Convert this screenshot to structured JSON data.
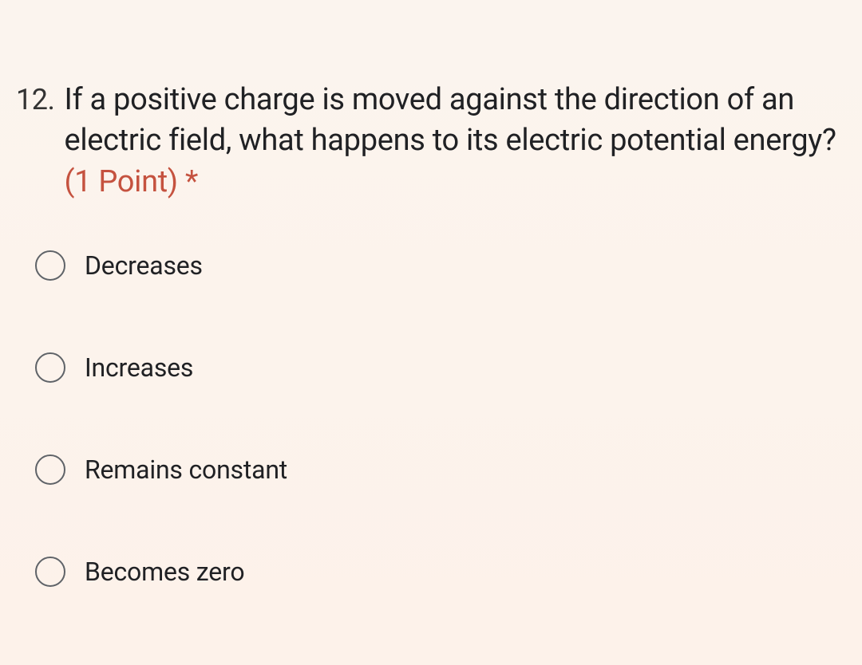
{
  "question": {
    "number": "12.",
    "text": "If a positive charge is moved against the direction of an electric field, what happens to its electric potential energy?",
    "points_label": "(1 Point)",
    "required_mark": "*"
  },
  "options": [
    {
      "label": "Decreases"
    },
    {
      "label": "Increases"
    },
    {
      "label": "Remains constant"
    },
    {
      "label": "Becomes zero"
    }
  ],
  "styling": {
    "background_gradient_top": "#fbf4ee",
    "background_gradient_bottom": "#fdf2ea",
    "text_color": "#202124",
    "points_color": "#c5523f",
    "radio_border_color": "#5f6368",
    "question_fontsize": 38,
    "option_fontsize": 32,
    "radio_size": 38,
    "option_gap": 90
  }
}
